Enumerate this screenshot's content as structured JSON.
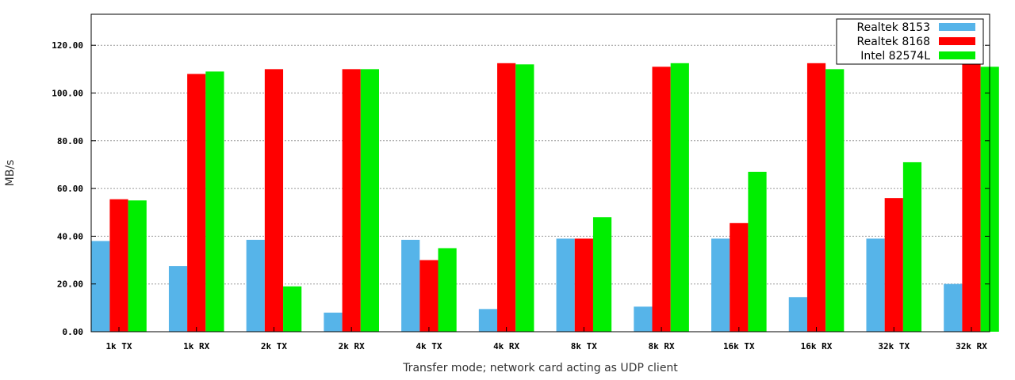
{
  "chart_data": {
    "type": "bar",
    "title": "",
    "xlabel": "Transfer mode; network card acting as UDP client",
    "ylabel": "MB/s",
    "ylim": [
      0,
      120
    ],
    "ymax_display": 133,
    "yticks": [
      "0.00",
      "20.00",
      "40.00",
      "60.00",
      "80.00",
      "100.00",
      "120.00"
    ],
    "ytick_values": [
      0,
      20,
      40,
      60,
      80,
      100,
      120
    ],
    "grid": true,
    "legend_position": "top-right",
    "categories": [
      "1k TX",
      "1k RX",
      "2k TX",
      "2k RX",
      "4k TX",
      "4k RX",
      "8k TX",
      "8k RX",
      "16k TX",
      "16k RX",
      "32k TX",
      "32k RX"
    ],
    "series": [
      {
        "name": "Realtek 8153",
        "color": "#56b4e9",
        "values": [
          38,
          27.5,
          38.5,
          8,
          38.5,
          9.5,
          39,
          10.5,
          39,
          14.5,
          39,
          20
        ]
      },
      {
        "name": "Realtek 8168",
        "color": "#ff0000",
        "values": [
          55.5,
          108,
          110,
          110,
          30,
          112.5,
          39,
          111,
          45.5,
          112.5,
          56,
          112.5
        ]
      },
      {
        "name": "Intel 82574L",
        "color": "#00ee00",
        "values": [
          55,
          109,
          19,
          110,
          35,
          112,
          48,
          112.5,
          67,
          110,
          71,
          111
        ]
      }
    ]
  }
}
